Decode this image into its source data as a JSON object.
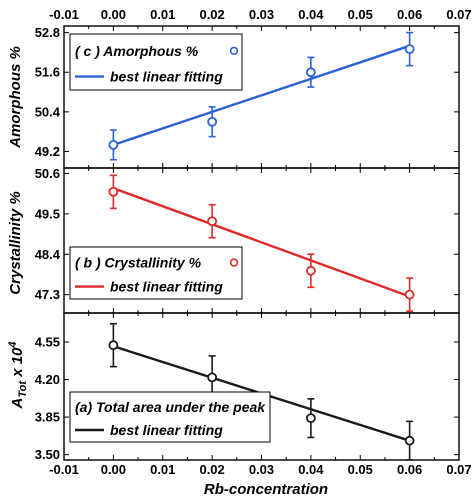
{
  "chart_data": [
    {
      "type": "scatter",
      "panel": "c",
      "ylabel": "Amorphous %",
      "ylim": [
        48.7,
        53.0
      ],
      "yticks": [
        "49.2",
        "50.4",
        "51.6",
        "52.8"
      ],
      "x": [
        0.0,
        0.02,
        0.04,
        0.06
      ],
      "series": [
        {
          "name": "( c )  Amorphous %",
          "kind": "points",
          "color": "#2a62d6",
          "values": [
            49.4,
            50.1,
            51.6,
            52.3
          ],
          "errors": [
            0.45,
            0.45,
            0.45,
            0.5
          ]
        },
        {
          "name": "best linear fitting",
          "kind": "fit",
          "color": "#2a62d6",
          "fit": [
            49.4,
            52.4
          ]
        }
      ],
      "legend": "top-left"
    },
    {
      "type": "scatter",
      "panel": "b",
      "ylabel": "Crystallinity %",
      "ylim": [
        46.8,
        50.75
      ],
      "yticks": [
        "47.3",
        "48.4",
        "49.5",
        "50.6"
      ],
      "x": [
        0.0,
        0.02,
        0.04,
        0.06
      ],
      "series": [
        {
          "name": "( b )  Crystallinity %",
          "kind": "points",
          "color": "#e02a2a",
          "values": [
            50.1,
            49.3,
            47.95,
            47.3
          ],
          "errors": [
            0.45,
            0.45,
            0.45,
            0.45
          ]
        },
        {
          "name": "best linear fitting",
          "kind": "fit",
          "color": "#e02a2a",
          "fit": [
            50.2,
            47.25
          ]
        }
      ],
      "legend": "bottom-left"
    },
    {
      "type": "scatter",
      "panel": "a",
      "ylabel": "A_Tot x 10^4",
      "ylim": [
        3.45,
        4.82
      ],
      "yticks": [
        "3.50",
        "3.85",
        "4.20",
        "4.55"
      ],
      "x": [
        0.0,
        0.02,
        0.04,
        0.06
      ],
      "series": [
        {
          "name": "(a)  Total area under the peak",
          "kind": "points",
          "color": "#1a1a1a",
          "values": [
            4.52,
            4.22,
            3.84,
            3.63
          ],
          "errors": [
            0.2,
            0.2,
            0.18,
            0.18
          ]
        },
        {
          "name": "best linear fitting",
          "kind": "fit",
          "color": "#1a1a1a",
          "fit": [
            4.51,
            3.63
          ]
        }
      ],
      "legend": "bottom-left"
    }
  ],
  "x_axis": {
    "label": "Rb-concentration",
    "xlim": [
      -0.01,
      0.07
    ],
    "ticks": [
      "-0.01",
      "0.00",
      "0.01",
      "0.02",
      "0.03",
      "0.04",
      "0.05",
      "0.06",
      "0.07"
    ]
  }
}
